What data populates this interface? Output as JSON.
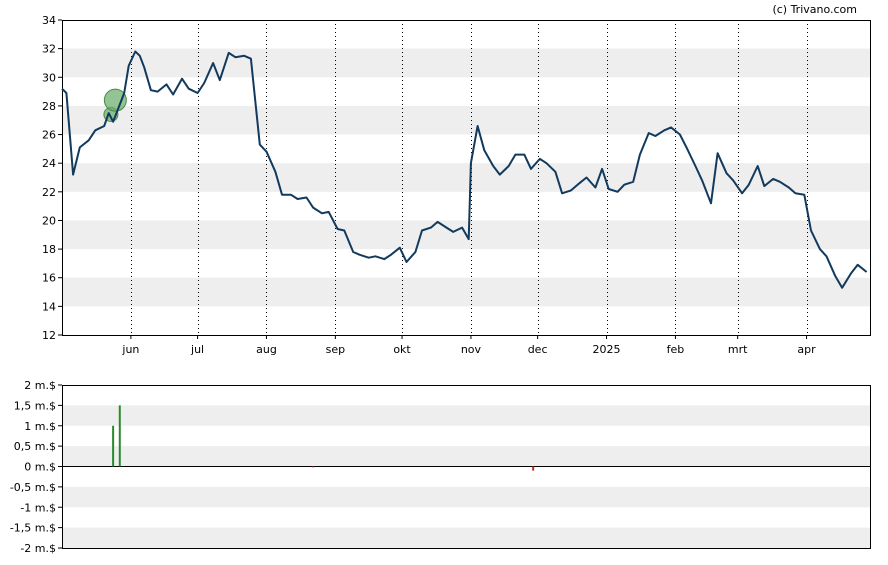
{
  "credit": "(c) Trivano.com",
  "chart_data": [
    {
      "type": "line",
      "title": "",
      "xlabel": "",
      "ylabel": "",
      "ylim": [
        12,
        34
      ],
      "y_ticks": [
        "34",
        "32",
        "30",
        "28",
        "26",
        "24",
        "22",
        "20",
        "18",
        "16",
        "14",
        "12"
      ],
      "x_ticks": [
        "jun",
        "jul",
        "aug",
        "sep",
        "okt",
        "nov",
        "dec",
        "2025",
        "feb",
        "mrt",
        "apr"
      ],
      "grid": "horizontal bands, dotted vertical lines at month starts",
      "colors": {
        "line": "#123a5c",
        "band": "#eeeeee",
        "marker": "#66aa66"
      },
      "series": [
        {
          "x": [
            "2024-05-01",
            "2024-05-03",
            "2024-05-06",
            "2024-05-09",
            "2024-05-13",
            "2024-05-16",
            "2024-05-20",
            "2024-05-22",
            "2024-05-24",
            "2024-05-27",
            "2024-05-29",
            "2024-05-31",
            "2024-06-03",
            "2024-06-05",
            "2024-06-07",
            "2024-06-10",
            "2024-06-13",
            "2024-06-17",
            "2024-06-20",
            "2024-06-24",
            "2024-06-27",
            "2024-07-01",
            "2024-07-04",
            "2024-07-08",
            "2024-07-11",
            "2024-07-15",
            "2024-07-18",
            "2024-07-22",
            "2024-07-25",
            "2024-07-29",
            "2024-08-01",
            "2024-08-05",
            "2024-08-08",
            "2024-08-12",
            "2024-08-15",
            "2024-08-19",
            "2024-08-22",
            "2024-08-26",
            "2024-08-29",
            "2024-09-02",
            "2024-09-05",
            "2024-09-09",
            "2024-09-12",
            "2024-09-16",
            "2024-09-19",
            "2024-09-23",
            "2024-09-26",
            "2024-09-30",
            "2024-10-03",
            "2024-10-07",
            "2024-10-10",
            "2024-10-14",
            "2024-10-17",
            "2024-10-21",
            "2024-10-24",
            "2024-10-28",
            "2024-10-31",
            "2024-11-01",
            "2024-11-04",
            "2024-11-07",
            "2024-11-11",
            "2024-11-14",
            "2024-11-18",
            "2024-11-21",
            "2024-11-25",
            "2024-11-28",
            "2024-12-02",
            "2024-12-05",
            "2024-12-09",
            "2024-12-12",
            "2024-12-16",
            "2024-12-19",
            "2024-12-23",
            "2024-12-27",
            "2024-12-30",
            "2025-01-02",
            "2025-01-06",
            "2025-01-09",
            "2025-01-13",
            "2025-01-16",
            "2025-01-20",
            "2025-01-23",
            "2025-01-27",
            "2025-01-30",
            "2025-02-03",
            "2025-02-06",
            "2025-02-10",
            "2025-02-13",
            "2025-02-17",
            "2025-02-20",
            "2025-02-24",
            "2025-02-27",
            "2025-03-03",
            "2025-03-06",
            "2025-03-10",
            "2025-03-13",
            "2025-03-17",
            "2025-03-20",
            "2025-03-24",
            "2025-03-27",
            "2025-03-31",
            "2025-04-03",
            "2025-04-07",
            "2025-04-10",
            "2025-04-14",
            "2025-04-17",
            "2025-04-21",
            "2025-04-24",
            "2025-04-28"
          ],
          "values": [
            29.2,
            28.9,
            23.2,
            25.1,
            25.6,
            26.3,
            26.6,
            27.5,
            26.9,
            28.1,
            28.9,
            30.8,
            31.8,
            31.5,
            30.7,
            29.1,
            29.0,
            29.5,
            28.8,
            29.9,
            29.2,
            28.9,
            29.6,
            31.0,
            29.8,
            31.7,
            31.4,
            31.5,
            31.3,
            25.3,
            24.8,
            23.4,
            21.8,
            21.8,
            21.5,
            21.6,
            20.9,
            20.5,
            20.6,
            19.4,
            19.3,
            17.8,
            17.6,
            17.4,
            17.5,
            17.3,
            17.6,
            18.1,
            17.1,
            17.8,
            19.3,
            19.5,
            19.9,
            19.5,
            19.2,
            19.5,
            18.7,
            24.0,
            26.6,
            24.9,
            23.8,
            23.2,
            23.8,
            24.6,
            24.6,
            23.6,
            24.3,
            24.0,
            23.4,
            21.9,
            22.1,
            22.5,
            23.0,
            22.3,
            23.6,
            22.2,
            22.0,
            22.5,
            22.7,
            24.6,
            26.1,
            25.9,
            26.3,
            26.5,
            26.0,
            25.1,
            23.8,
            22.8,
            21.2,
            24.7,
            23.3,
            22.8,
            21.9,
            22.5,
            23.8,
            22.4,
            22.9,
            22.7,
            22.3,
            21.9,
            21.8,
            19.3,
            18.0,
            17.5,
            16.1,
            15.3,
            16.3,
            16.9,
            16.4
          ]
        }
      ],
      "markers": [
        {
          "x": "2024-05-23",
          "y": 27.4
        },
        {
          "x": "2024-05-25",
          "y": 28.4
        }
      ]
    },
    {
      "type": "bar",
      "title": "",
      "ylabel": "",
      "ylim": [
        -2,
        2
      ],
      "y_ticks": [
        "2 m.$",
        "1,5 m.$",
        "1 m.$",
        "0,5 m.$",
        "0 m.$",
        "-0,5 m.$",
        "-1 m.$",
        "-1,5 m.$",
        "-2 m.$"
      ],
      "colors": {
        "positive": "#2a8a2a",
        "negative": "#cc2222",
        "band": "#eeeeee"
      },
      "x": [
        "2024-05-24",
        "2024-05-27",
        "2024-08-22",
        "2024-11-29"
      ],
      "values": [
        1.0,
        1.5,
        -0.02,
        -0.1
      ]
    }
  ]
}
